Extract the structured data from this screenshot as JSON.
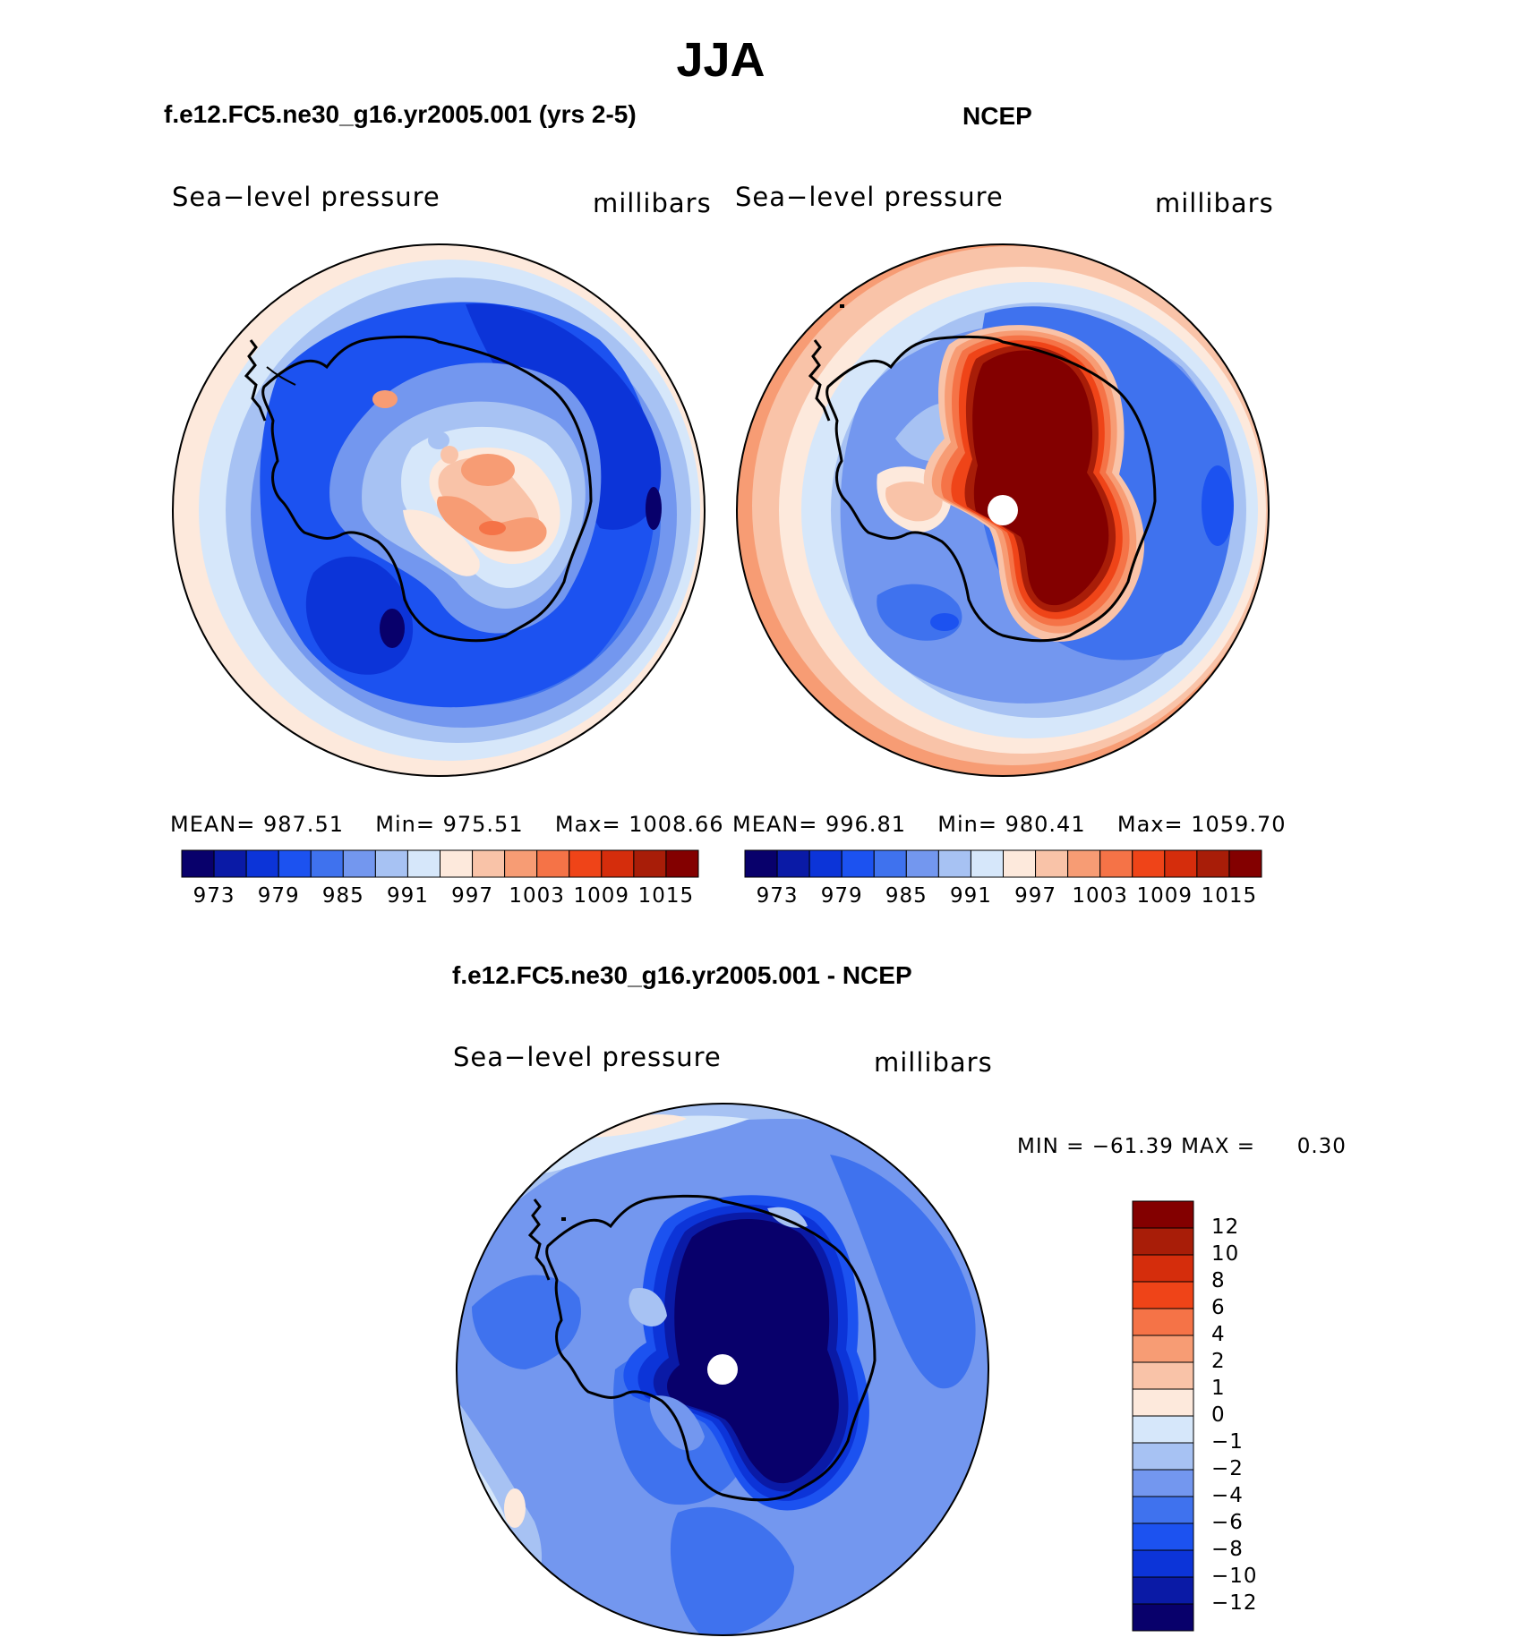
{
  "figure": {
    "title": "JJA"
  },
  "panels": [
    {
      "title": "f.e12.FC5.ne30_g16.yr2005.001 (yrs 2-5)",
      "variable": "Sea−level pressure",
      "units": "millibars",
      "mean_label": "MEAN=",
      "mean": "987.51",
      "min_label": "Min=",
      "min": "975.51",
      "max_label": "Max=",
      "max": "1008.66"
    },
    {
      "title": "NCEP",
      "variable": "Sea−level pressure",
      "units": "millibars",
      "mean_label": "MEAN=",
      "mean": "996.81",
      "min_label": "Min=",
      "min": "980.41",
      "max_label": "Max=",
      "max": "1059.70"
    },
    {
      "title": "f.e12.FC5.ne30_g16.yr2005.001 - NCEP",
      "variable": "Sea−level pressure",
      "units": "millibars",
      "minmax_text": "MIN = −61.39 MAX =",
      "max_value": "0.30"
    }
  ],
  "colorbar_horizontal": {
    "colors": [
      "#08006b",
      "#0a1aa6",
      "#0c34d8",
      "#1c52f0",
      "#3f72ee",
      "#7397ef",
      "#a7c2f3",
      "#d6e7fa",
      "#fde9dc",
      "#f9c3a8",
      "#f79c74",
      "#f57347",
      "#ef4418",
      "#d52d0c",
      "#a81d08",
      "#830000"
    ],
    "tick_labels": [
      "973",
      "979",
      "985",
      "991",
      "997",
      "1003",
      "1009",
      "1015"
    ]
  },
  "colorbar_vertical": {
    "colors_top_to_bottom": [
      "#830000",
      "#a81d08",
      "#d52d0c",
      "#ef4418",
      "#f57347",
      "#f79c74",
      "#f9c3a8",
      "#fde9dc",
      "#d6e7fa",
      "#a7c2f3",
      "#7397ef",
      "#3f72ee",
      "#1c52f0",
      "#0c34d8",
      "#0a1aa6",
      "#08006b"
    ],
    "tick_labels": [
      "12",
      "10",
      "8",
      "6",
      "4",
      "2",
      "1",
      "0",
      "−1",
      "−2",
      "−4",
      "−6",
      "−8",
      "−10",
      "−12"
    ]
  },
  "map_colors": {
    "deep": "#08006b",
    "dark_blue": "#0c34d8",
    "blue": "#1c52f0",
    "mid_blue": "#3f72ee",
    "light_blue": "#7397ef",
    "pale_blue": "#a7c2f3",
    "very_pale_blue": "#d6e7fa",
    "cream": "#fde9dc",
    "peach": "#f9c3a8",
    "salmon": "#f79c74",
    "orange": "#f57347",
    "red_orange": "#ef4418",
    "dark_red": "#830000"
  }
}
